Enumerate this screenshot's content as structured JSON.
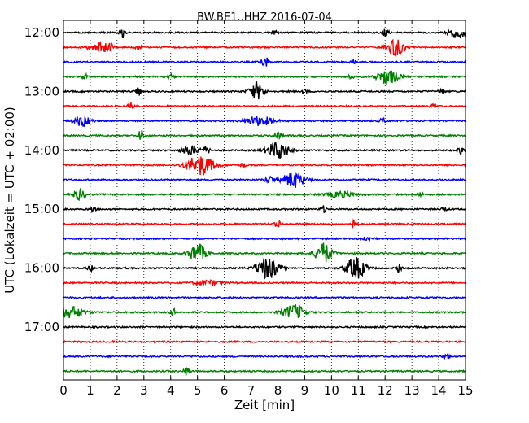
{
  "chart_data": {
    "type": "line",
    "title": "BW.BE1..HHZ 2016-07-04",
    "xlabel": "Zeit  [min]",
    "ylabel": "UTC (Lokalzeit = UTC + 02:00)",
    "xlim": [
      0,
      15
    ],
    "x_ticks": [
      "0",
      "1",
      "2",
      "3",
      "4",
      "5",
      "6",
      "7",
      "8",
      "9",
      "10",
      "11",
      "12",
      "13",
      "14",
      "15"
    ],
    "y_ticks": [
      "12:00",
      "13:00",
      "14:00",
      "15:00",
      "16:00",
      "17:00"
    ],
    "grid": "vertical dotted at each minute",
    "colors": [
      "#000000",
      "#ff0000",
      "#0000ff",
      "#008000"
    ],
    "series": [
      {
        "start": "12:00",
        "color": "#000000",
        "events": [
          [
            2.2,
            6,
            0.1
          ],
          [
            7.9,
            3,
            0.1
          ],
          [
            12.0,
            4,
            0.15
          ],
          [
            14.7,
            7,
            0.3
          ]
        ]
      },
      {
        "start": "12:15",
        "color": "#ff0000",
        "events": [
          [
            1.3,
            5,
            0.4
          ],
          [
            1.7,
            5,
            0.15
          ],
          [
            2.8,
            3,
            0.1
          ],
          [
            12.4,
            9,
            0.35
          ]
        ]
      },
      {
        "start": "12:30",
        "color": "#0000ff",
        "events": [
          [
            7.5,
            7,
            0.15
          ],
          [
            10.8,
            3,
            0.1
          ]
        ]
      },
      {
        "start": "12:45",
        "color": "#008000",
        "events": [
          [
            0.8,
            4,
            0.1
          ],
          [
            4.0,
            3,
            0.1
          ],
          [
            10.7,
            4,
            0.1
          ],
          [
            12.1,
            9,
            0.4
          ]
        ]
      },
      {
        "start": "13:00",
        "color": "#000000",
        "events": [
          [
            2.8,
            5,
            0.1
          ],
          [
            7.2,
            11,
            0.25
          ],
          [
            9.0,
            3,
            0.1
          ],
          [
            14.1,
            4,
            0.1
          ]
        ]
      },
      {
        "start": "13:15",
        "color": "#ff0000",
        "events": [
          [
            2.5,
            4,
            0.1
          ],
          [
            13.8,
            3,
            0.1
          ]
        ]
      },
      {
        "start": "13:30",
        "color": "#0000ff",
        "events": [
          [
            0.7,
            7,
            0.3
          ],
          [
            7.3,
            6,
            0.5
          ],
          [
            11.9,
            3,
            0.1
          ]
        ]
      },
      {
        "start": "13:45",
        "color": "#008000",
        "events": [
          [
            2.9,
            8,
            0.1
          ],
          [
            8.0,
            4,
            0.15
          ]
        ]
      },
      {
        "start": "14:00",
        "color": "#000000",
        "events": [
          [
            4.7,
            6,
            0.3
          ],
          [
            5.3,
            4,
            0.2
          ],
          [
            8.0,
            11,
            0.4
          ],
          [
            14.8,
            5,
            0.1
          ]
        ]
      },
      {
        "start": "14:15",
        "color": "#ff0000",
        "events": [
          [
            5.1,
            13,
            0.5
          ],
          [
            6.7,
            3,
            0.1
          ]
        ]
      },
      {
        "start": "14:30",
        "color": "#0000ff",
        "events": [
          [
            7.7,
            4,
            0.2
          ],
          [
            8.6,
            10,
            0.4
          ]
        ]
      },
      {
        "start": "14:45",
        "color": "#008000",
        "events": [
          [
            0.6,
            7,
            0.2
          ],
          [
            10.3,
            4,
            0.5
          ],
          [
            13.3,
            3,
            0.1
          ]
        ]
      },
      {
        "start": "15:00",
        "color": "#000000",
        "events": [
          [
            1.1,
            3,
            0.1
          ],
          [
            9.7,
            4,
            0.1
          ],
          [
            14.2,
            3,
            0.1
          ]
        ]
      },
      {
        "start": "15:15",
        "color": "#ff0000",
        "events": [
          [
            8.0,
            6,
            0.1
          ],
          [
            10.8,
            5,
            0.1
          ]
        ]
      },
      {
        "start": "15:30",
        "color": "#0000ff",
        "events": [
          [
            11.3,
            3,
            0.2
          ]
        ]
      },
      {
        "start": "15:45",
        "color": "#008000",
        "events": [
          [
            5.0,
            12,
            0.3
          ],
          [
            9.7,
            13,
            0.3
          ]
        ]
      },
      {
        "start": "16:00",
        "color": "#000000",
        "events": [
          [
            1.0,
            4,
            0.1
          ],
          [
            7.6,
            14,
            0.4
          ],
          [
            10.9,
            14,
            0.35
          ],
          [
            12.5,
            5,
            0.1
          ]
        ]
      },
      {
        "start": "16:15",
        "color": "#ff0000",
        "events": [
          [
            5.4,
            3,
            0.5
          ]
        ]
      },
      {
        "start": "16:30",
        "color": "#0000ff",
        "events": []
      },
      {
        "start": "16:45",
        "color": "#008000",
        "events": [
          [
            0.3,
            7,
            0.5
          ],
          [
            4.1,
            4,
            0.1
          ],
          [
            8.6,
            9,
            0.4
          ]
        ]
      },
      {
        "start": "17:00",
        "color": "#000000",
        "events": []
      },
      {
        "start": "17:15",
        "color": "#ff0000",
        "events": []
      },
      {
        "start": "17:30",
        "color": "#0000ff",
        "events": [
          [
            14.3,
            3,
            0.1
          ]
        ]
      },
      {
        "start": "17:45",
        "color": "#008000",
        "events": [
          [
            4.6,
            6,
            0.1
          ]
        ]
      }
    ]
  }
}
